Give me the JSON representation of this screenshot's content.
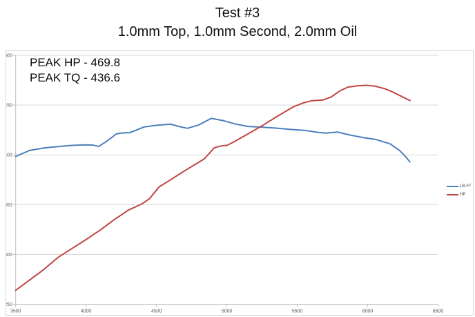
{
  "title_line1": "Test #3",
  "title_line2": "1.0mm Top, 1.0mm Second, 2.0mm Oil",
  "annotation": {
    "line1": "PEAK HP - 469.8",
    "line2": "PEAK TQ - 436.6"
  },
  "colors": {
    "torque_line": "#4a7ebb",
    "hp_line": "#bf4444",
    "gridline": "#d9d9d9",
    "axis_line": "#bfbfbf",
    "axis_label_text": "#595959",
    "title_text": "#111111",
    "annotation_text": "#0a0a0a",
    "legend_text": "#3f3f3f",
    "chart_border": "#d6d6d6"
  },
  "chart_data": {
    "type": "line",
    "title": "Test #3",
    "subtitle": "1.0mm Top, 1.0mm Second, 2.0mm Oil",
    "annotations": [
      "PEAK HP - 469.8",
      "PEAK TQ - 436.6"
    ],
    "peak_hp": 469.8,
    "peak_tq": 436.6,
    "xlim": [
      3500,
      6500
    ],
    "ylim": [
      250,
      500
    ],
    "x_ticks": [
      3500,
      4000,
      4500,
      5000,
      5500,
      6000,
      6500
    ],
    "y_ticks": [
      250,
      300,
      350,
      400,
      450,
      500
    ],
    "grid": true,
    "legend_position": "right",
    "series": [
      {
        "name": "LB-FT",
        "color": "#4a7ebb",
        "x": [
          3500,
          3600,
          3700,
          3800,
          3900,
          4000,
          4050,
          4090,
          4150,
          4215,
          4260,
          4310,
          4350,
          4410,
          4490,
          4600,
          4660,
          4720,
          4800,
          4890,
          4970,
          5060,
          5150,
          5250,
          5350,
          5450,
          5550,
          5650,
          5700,
          5790,
          5870,
          5970,
          6060,
          6160,
          6230,
          6270,
          6300
        ],
        "y": [
          398.5,
          404.5,
          406.9,
          408.3,
          409.5,
          410,
          409.8,
          408.4,
          414,
          421,
          422,
          422.3,
          424.5,
          427.9,
          429.5,
          430.8,
          428.5,
          426.6,
          430,
          436.6,
          434.5,
          431,
          428.5,
          427.8,
          426.8,
          425.5,
          424.6,
          422.5,
          421.8,
          422.8,
          420,
          417.3,
          415.4,
          411,
          404,
          398,
          393
        ]
      },
      {
        "name": "HP",
        "color": "#bf4444",
        "x": [
          3500,
          3600,
          3700,
          3800,
          3900,
          4000,
          4100,
          4190,
          4300,
          4400,
          4450,
          4520,
          4600,
          4700,
          4770,
          4840,
          4910,
          4960,
          5000,
          5050,
          5150,
          5260,
          5350,
          5470,
          5540,
          5600,
          5680,
          5740,
          5800,
          5860,
          5930,
          5990,
          6050,
          6120,
          6180,
          6250,
          6300
        ],
        "y": [
          264,
          274.5,
          285,
          297,
          306,
          315,
          324.5,
          334,
          344.5,
          351,
          356,
          368,
          375,
          384,
          390,
          396,
          407,
          409,
          409.5,
          413,
          421,
          430,
          438,
          448,
          452,
          454.3,
          455,
          458,
          464,
          468,
          469.3,
          469.8,
          469,
          466.5,
          463,
          458,
          454.5
        ]
      }
    ]
  }
}
